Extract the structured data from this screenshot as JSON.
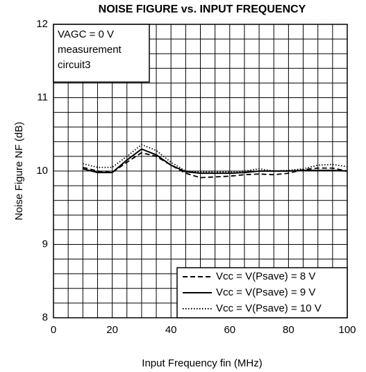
{
  "chart_data": {
    "type": "line",
    "title": "NOISE FIGURE vs. INPUT FREQUENCY",
    "xlabel": "Input Frequency fin (MHz)",
    "ylabel": "Noise Figure NF (dB)",
    "annotations": [
      "VAGC = 0 V",
      "measurement",
      "circuit3"
    ],
    "xlim": [
      0,
      100
    ],
    "ylim": [
      8,
      12
    ],
    "xticks": [
      0,
      20,
      40,
      60,
      80,
      100
    ],
    "yticks": [
      8,
      9,
      10,
      11,
      12
    ],
    "xgrid": [
      0,
      5,
      10,
      15,
      20,
      25,
      30,
      35,
      40,
      45,
      50,
      55,
      60,
      65,
      70,
      75,
      80,
      85,
      90,
      95,
      100
    ],
    "ygrid": [
      8,
      8.2,
      8.4,
      8.6,
      8.8,
      9,
      9.2,
      9.4,
      9.6,
      9.8,
      10,
      10.2,
      10.4,
      10.6,
      10.8,
      11,
      11.2,
      11.4,
      11.6,
      11.8,
      12
    ],
    "grid": true,
    "legend": "lower right",
    "x": [
      10,
      15,
      20,
      25,
      30,
      35,
      40,
      45,
      50,
      55,
      60,
      65,
      70,
      75,
      80,
      85,
      90,
      95,
      100
    ],
    "series": [
      {
        "name": "Vcc = V(Psave) = 8 V",
        "color": "#000000",
        "style": "dashed",
        "values": [
          10.05,
          10.0,
          9.98,
          10.12,
          10.25,
          10.2,
          10.08,
          9.97,
          9.91,
          9.92,
          9.93,
          9.95,
          9.96,
          9.95,
          9.97,
          10.02,
          10.04,
          10.04,
          10.0
        ]
      },
      {
        "name": "Vcc = V(Psave) = 9 V",
        "color": "#000000",
        "style": "solid",
        "values": [
          10.03,
          9.98,
          9.98,
          10.15,
          10.3,
          10.22,
          10.08,
          9.99,
          9.97,
          9.97,
          9.97,
          9.98,
          10.0,
          10.0,
          10.0,
          10.01,
          10.01,
          10.01,
          10.0
        ]
      },
      {
        "name": "Vcc = V(Psave) = 10 V",
        "color": "#000000",
        "style": "dotted",
        "values": [
          10.1,
          10.05,
          10.05,
          10.2,
          10.36,
          10.28,
          10.12,
          10.0,
          9.99,
          9.99,
          9.99,
          10.0,
          10.03,
          10.0,
          10.01,
          10.03,
          10.08,
          10.09,
          10.06
        ]
      }
    ]
  }
}
